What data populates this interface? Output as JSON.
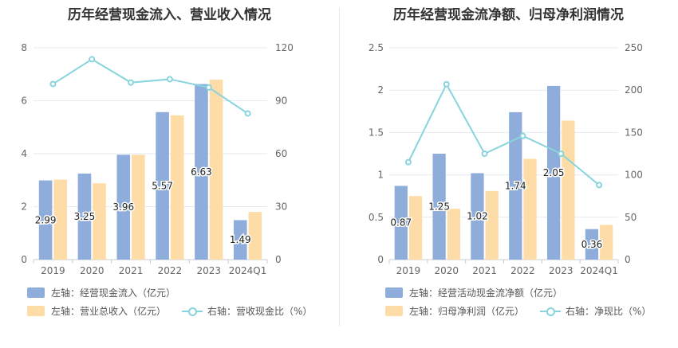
{
  "chart_data": [
    {
      "type": "bar",
      "title": "历年经营现金流入、营业收入情况",
      "categories": [
        "2019",
        "2020",
        "2021",
        "2022",
        "2023",
        "2024Q1"
      ],
      "left_axis": {
        "ticks": [
          "0",
          "2",
          "4",
          "6",
          "8"
        ],
        "range": [
          0,
          8
        ]
      },
      "right_axis": {
        "ticks": [
          "0",
          "30",
          "60",
          "90",
          "120"
        ],
        "range": [
          0,
          120
        ]
      },
      "series": [
        {
          "name": "左轴：经营现金流入（亿元）",
          "type": "bar",
          "axis": "left",
          "color": "#8eaddb",
          "values": [
            2.99,
            3.25,
            3.96,
            5.57,
            6.63,
            1.49
          ],
          "labels": [
            "2.99",
            "3.25",
            "3.96",
            "5.57",
            "6.63",
            "1.49"
          ]
        },
        {
          "name": "左轴：营业总收入（亿元）",
          "type": "bar",
          "axis": "left",
          "color": "#fedca7",
          "values": [
            3.02,
            2.88,
            3.96,
            5.45,
            6.8,
            1.8
          ]
        },
        {
          "name": "右轴：营收现金比（%）",
          "type": "line",
          "axis": "right",
          "color": "#88d4dc",
          "values": [
            99.5,
            113.5,
            100.3,
            102.2,
            97.5,
            82.8
          ]
        }
      ]
    },
    {
      "type": "bar",
      "title": "历年经营现金流净额、归母净利润情况",
      "categories": [
        "2019",
        "2020",
        "2021",
        "2022",
        "2023",
        "2024Q1"
      ],
      "left_axis": {
        "ticks": [
          "0",
          "0.5",
          "1",
          "1.5",
          "2",
          "2.5"
        ],
        "range": [
          0,
          2.5
        ]
      },
      "right_axis": {
        "ticks": [
          "0",
          "50",
          "100",
          "150",
          "200",
          "250"
        ],
        "range": [
          0,
          250
        ]
      },
      "series": [
        {
          "name": "左轴：经营活动现金流净额（亿元）",
          "type": "bar",
          "axis": "left",
          "color": "#8eaddb",
          "values": [
            0.87,
            1.25,
            1.02,
            1.74,
            2.05,
            0.36
          ],
          "labels": [
            "0.87",
            "1.25",
            "1.02",
            "1.74",
            "2.05",
            "0.36"
          ]
        },
        {
          "name": "左轴：归母净利润（亿元）",
          "type": "bar",
          "axis": "left",
          "color": "#fedca7",
          "values": [
            0.75,
            0.6,
            0.81,
            1.19,
            1.64,
            0.41
          ]
        },
        {
          "name": "右轴：净现比（%）",
          "type": "line",
          "axis": "right",
          "color": "#88d4dc",
          "values": [
            115,
            207,
            125,
            146,
            125,
            88
          ]
        }
      ]
    }
  ]
}
